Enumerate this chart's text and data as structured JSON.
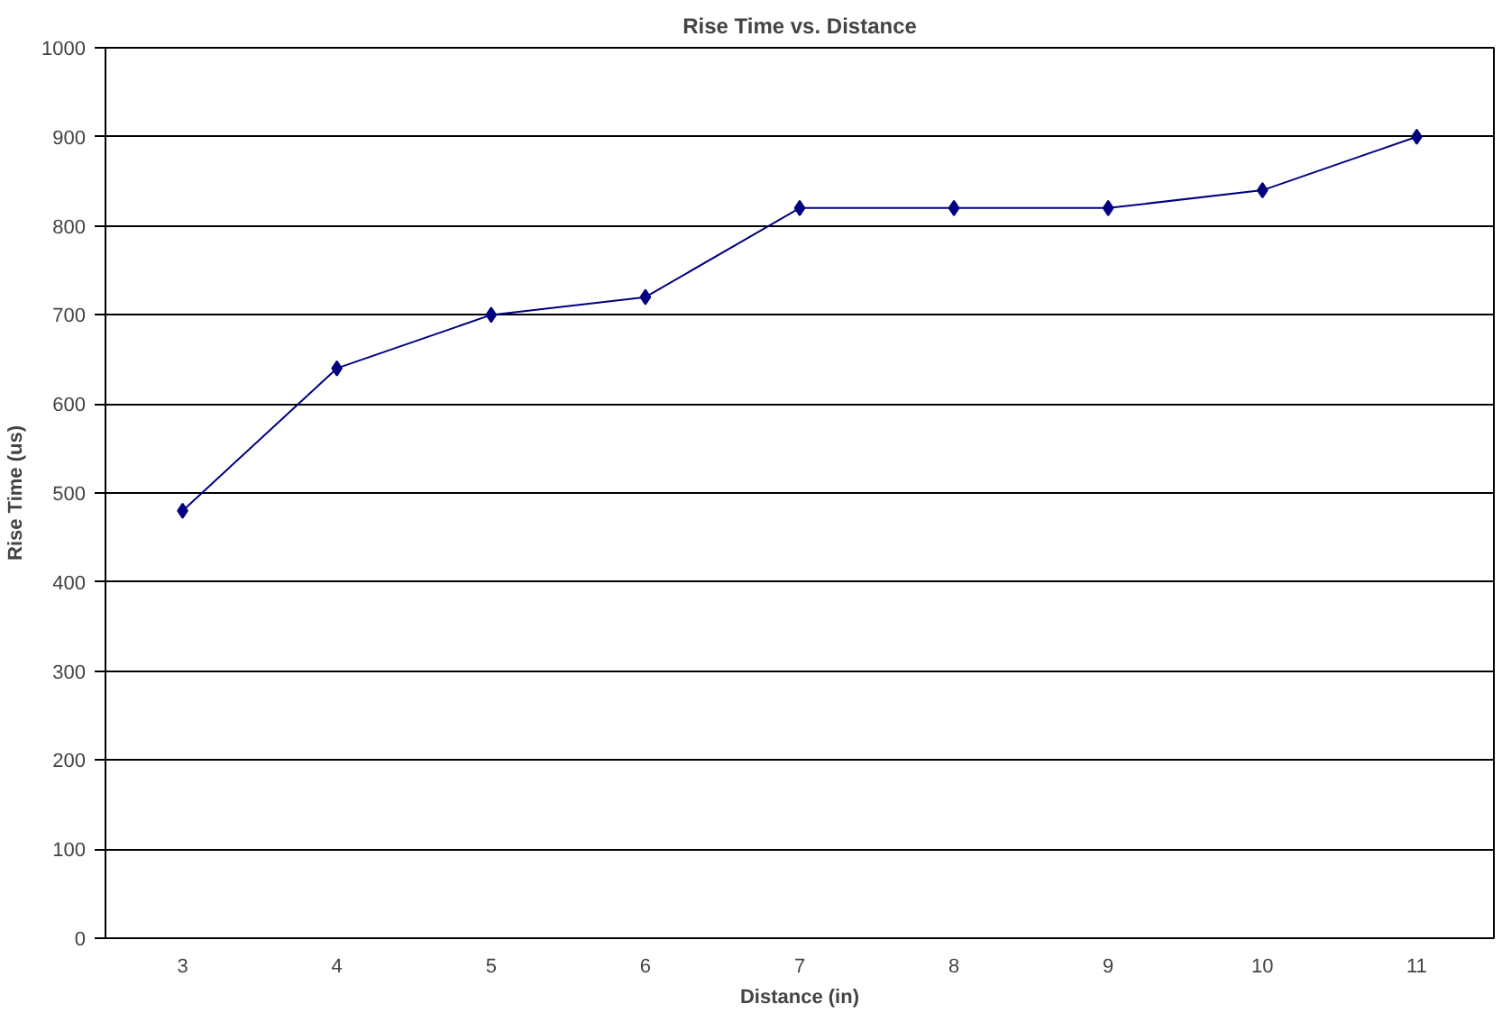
{
  "chart_data": {
    "type": "line",
    "title": "Rise Time vs. Distance",
    "xlabel": "Distance (in)",
    "ylabel": "Rise Time (us)",
    "categories": [
      "3",
      "4",
      "5",
      "6",
      "7",
      "8",
      "9",
      "10",
      "11"
    ],
    "series": [
      {
        "color": "#000080",
        "values": [
          480,
          640,
          700,
          720,
          820,
          820,
          820,
          840,
          900
        ]
      }
    ],
    "ylim": [
      0,
      1000
    ],
    "yticks": [
      0,
      100,
      200,
      300,
      400,
      500,
      600,
      700,
      800,
      900,
      1000
    ],
    "grid": "y",
    "marker": "diamond",
    "line_style": "solid"
  }
}
